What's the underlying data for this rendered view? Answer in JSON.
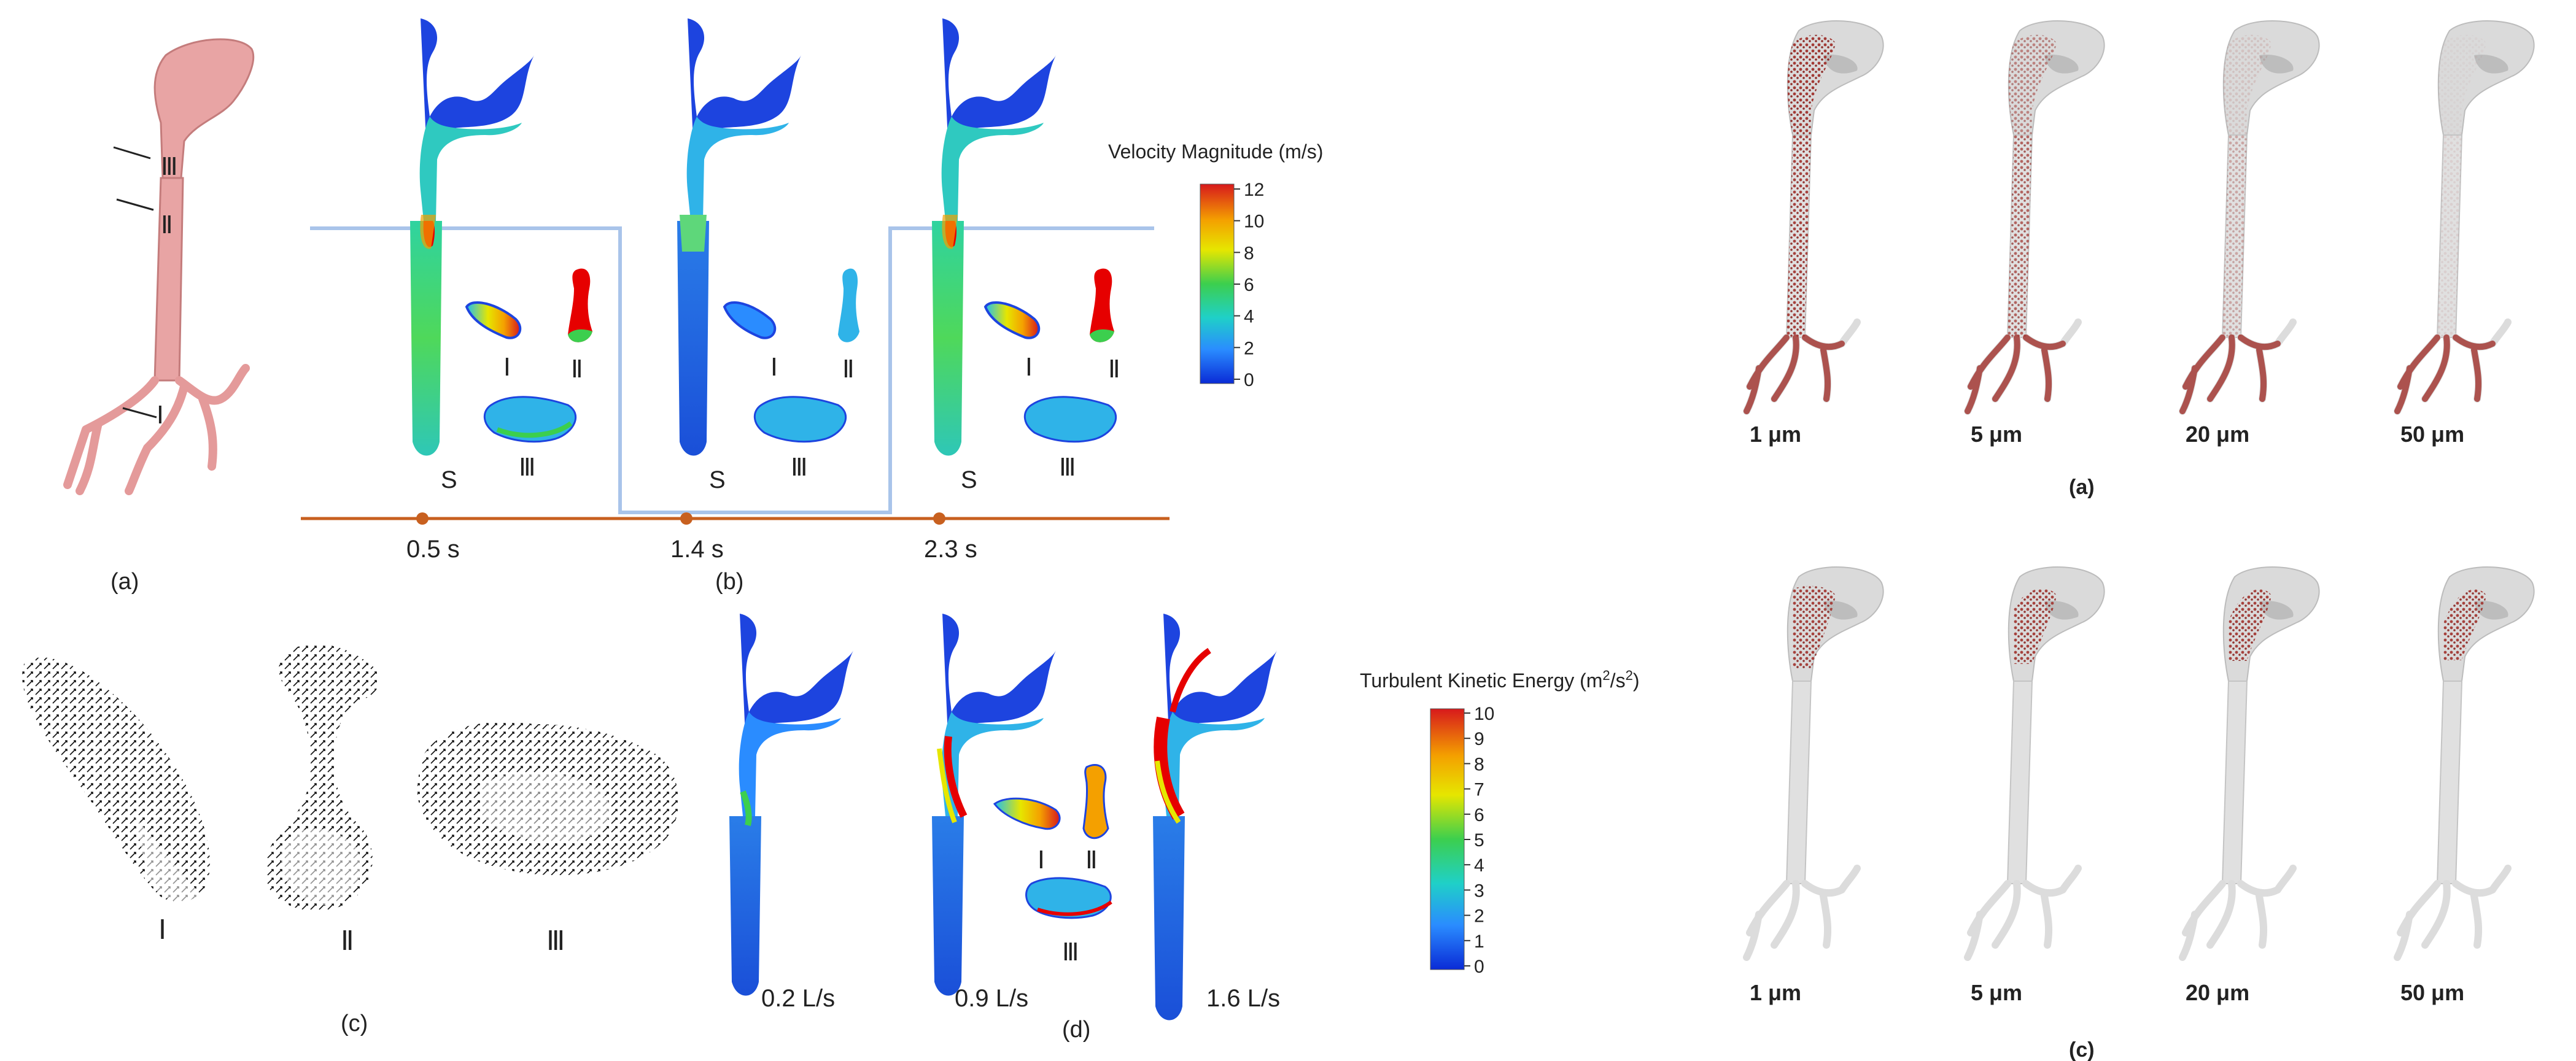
{
  "left_figure": {
    "panel_labels": {
      "a": "(a)",
      "b": "(b)",
      "c": "(c)",
      "d": "(d)"
    },
    "section_labels": {
      "I": "Ⅰ",
      "II": "Ⅱ",
      "III": "Ⅲ",
      "S": "S"
    },
    "time_labels": [
      "0.5 s",
      "1.4 s",
      "2.3 s"
    ],
    "flow_rate_labels": [
      "0.2 L/s",
      "0.9 L/s",
      "1.6 L/s"
    ],
    "velocity_legend": {
      "title": "Velocity Magnitude (m/s)",
      "ticks": [
        "12",
        "10",
        "8",
        "6",
        "4",
        "2",
        "0"
      ]
    },
    "tke_legend": {
      "title_main": "Turbulent Kinetic Energy (m",
      "title_sup1": "2",
      "title_mid": "/s",
      "title_sup2": "2",
      "title_end": ")",
      "ticks": [
        "10",
        "9",
        "8",
        "7",
        "6",
        "5",
        "4",
        "3",
        "2",
        "1",
        "0"
      ]
    }
  },
  "right_figure": {
    "panel_a_label": "(a)",
    "panel_c_label": "(c)",
    "particle_sizes_a": [
      "1 μm",
      "5 μm",
      "20 μm",
      "50 μm"
    ],
    "particle_sizes_c": [
      "1 μm",
      "5 μm",
      "20 μm",
      "50 μm"
    ]
  },
  "colors": {
    "airway_pink": "#e8a4a4",
    "timeline": "#c8601f",
    "outline_blue": "#a9c4ea",
    "deposit_red": "#a33a35",
    "airway_gray": "#d6d6d6"
  }
}
